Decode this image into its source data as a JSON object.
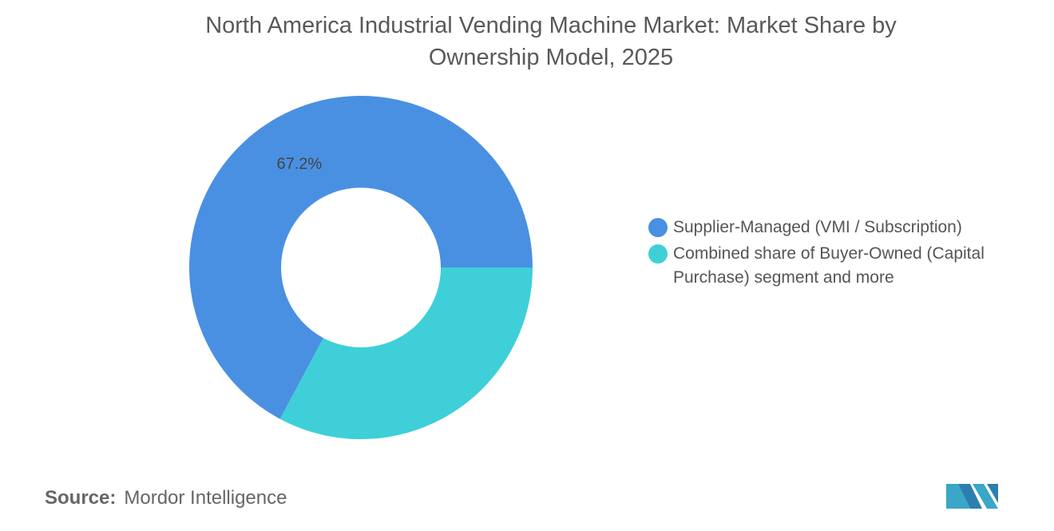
{
  "chart_data": {
    "type": "donut",
    "title": "North America Industrial Vending Machine Market: Market Share by Ownership Model, 2025",
    "categories": [
      "Supplier-Managed (VMI / Subscription)",
      "Combined share of Buyer-Owned (Capital Purchase) segment and more"
    ],
    "values": [
      67.2,
      32.8
    ],
    "value_labels": [
      "67.2%",
      null
    ],
    "colors": [
      "#4a90e2",
      "#3ecfd9"
    ],
    "legend_position": "right"
  },
  "source": {
    "label": "Source:",
    "text": "Mordor Intelligence"
  }
}
